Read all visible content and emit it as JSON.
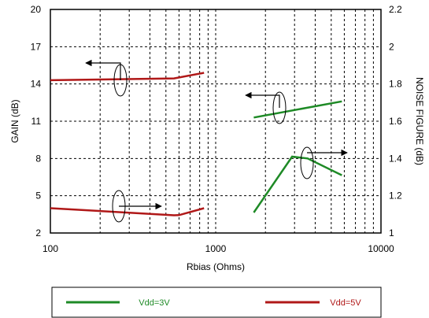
{
  "chart_data": {
    "type": "line",
    "xlabel": "Rbias (Ohms)",
    "ylabel_left": "GAIN (dB)",
    "ylabel_right": "NOISE FIGURE (dB)",
    "x_scale": "log",
    "xlim": [
      100,
      10000
    ],
    "x_ticks": [
      "100",
      "1000",
      "10000"
    ],
    "ylim_left": [
      2,
      20
    ],
    "y_ticks_left": [
      "2",
      "5",
      "8",
      "11",
      "14",
      "17",
      "20"
    ],
    "ylim_right": [
      1,
      2.2
    ],
    "y_ticks_right": [
      "1",
      "1.2",
      "1.4",
      "1.6",
      "1.8",
      "2",
      "2.2"
    ],
    "grid": true,
    "legend_position": "bottom",
    "series": [
      {
        "name": "Vdd=3V",
        "axis": "left",
        "color": "#1e8a26",
        "x": [
          1700,
          5800
        ],
        "y": [
          11.3,
          12.6
        ]
      },
      {
        "name": "Vdd=3V",
        "axis": "right",
        "color": "#1e8a26",
        "x": [
          1700,
          2900,
          3600,
          5800
        ],
        "y": [
          1.11,
          1.41,
          1.4,
          1.31
        ]
      },
      {
        "name": "Vdd=5V",
        "axis": "left",
        "color": "#b01818",
        "x": [
          100,
          560,
          850
        ],
        "y": [
          14.3,
          14.45,
          14.9
        ]
      },
      {
        "name": "Vdd=5V",
        "axis": "right",
        "color": "#b01818",
        "x": [
          100,
          560,
          600,
          850
        ],
        "y": [
          1.133,
          1.095,
          1.096,
          1.133
        ]
      }
    ],
    "annotations": [
      {
        "group": "red-gain",
        "arrow": "left"
      },
      {
        "group": "red-nf",
        "arrow": "right"
      },
      {
        "group": "green-gain",
        "arrow": "left"
      },
      {
        "group": "green-nf",
        "arrow": "right"
      }
    ]
  },
  "legend": {
    "items": [
      {
        "label": "Vdd=3V",
        "color": "#1e8a26"
      },
      {
        "label": "Vdd=5V",
        "color": "#b01818"
      }
    ]
  }
}
